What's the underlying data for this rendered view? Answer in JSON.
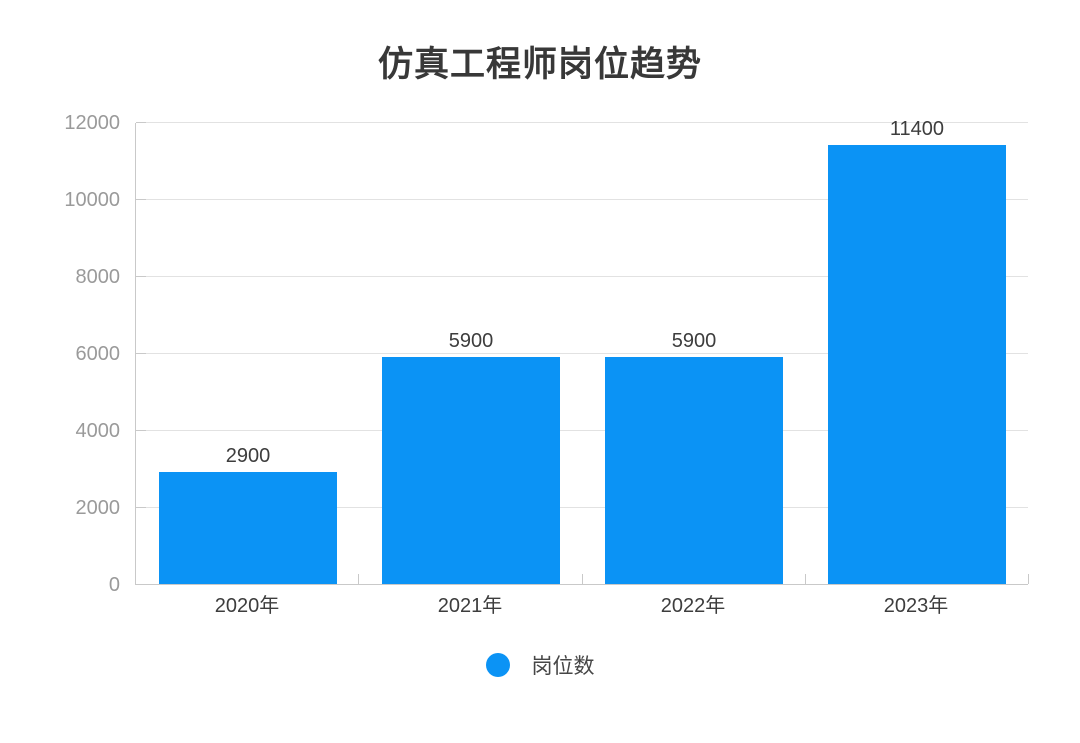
{
  "page": {
    "background": "#ffffff"
  },
  "chart_data": {
    "type": "bar",
    "title": "仿真工程师岗位趋势",
    "categories": [
      "2020年",
      "2021年",
      "2022年",
      "2023年"
    ],
    "series": [
      {
        "name": "岗位数",
        "values": [
          2900,
          5900,
          5900,
          11400
        ]
      }
    ],
    "value_labels": [
      "2900",
      "5900",
      "5900",
      "11400"
    ],
    "legend": {
      "items": [
        "岗位数"
      ],
      "position": "bottom",
      "swatch": "circle"
    },
    "xlabel": "",
    "ylabel": "",
    "ylim": [
      0,
      12000
    ],
    "yticks": [
      "0",
      "2000",
      "4000",
      "6000",
      "8000",
      "10000",
      "12000"
    ],
    "grid": "horizontal",
    "colors": {
      "bar": "#0B93F5",
      "title_text": "#383838",
      "axis_line": "#c9c9c9",
      "grid_line": "#e2e2e2",
      "y_tick_text": "#9a9a9a",
      "x_tick_text": "#3d3d3d",
      "value_label_text": "#3d3d3d",
      "legend_text": "#464646"
    }
  }
}
